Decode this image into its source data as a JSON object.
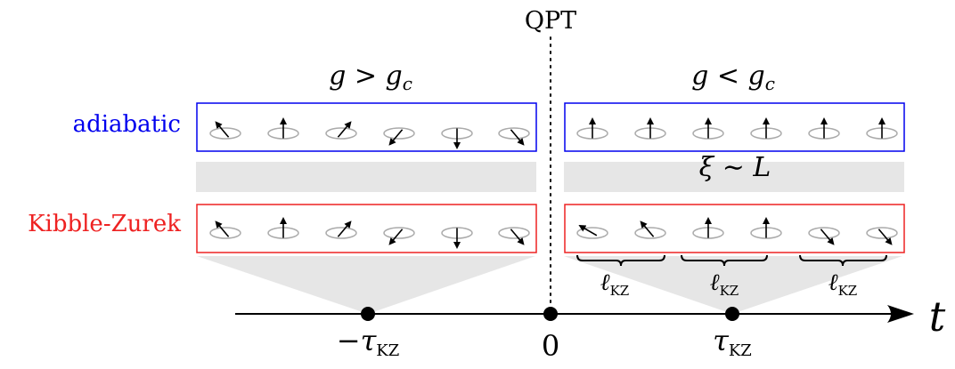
{
  "qpt_label": "QPT",
  "phase_left": {
    "g": "g",
    "rel": ">",
    "gc": "g",
    "sub": "c"
  },
  "phase_right": {
    "g": "g",
    "rel": "<",
    "gc": "g",
    "sub": "c"
  },
  "rows": {
    "adiabatic": {
      "label": "adiabatic",
      "color": "#0000ee"
    },
    "kz": {
      "label": "Kibble-Zurek",
      "color": "#ee2222"
    }
  },
  "xi_label": {
    "xi": "ξ",
    "rel": "∼",
    "L": "L"
  },
  "ell_label": {
    "ell": "ℓ",
    "sub": "KZ"
  },
  "time_axis": {
    "t": "t",
    "ticks": {
      "minus_tau": {
        "minus": "−",
        "tau": "τ",
        "sub": "KZ"
      },
      "zero": "0",
      "tau": {
        "tau": "τ",
        "sub": "KZ"
      }
    }
  },
  "spin_angles_deg": {
    "left": [
      -40,
      0,
      40,
      -140,
      180,
      140
    ],
    "adiabatic_right": [
      0,
      0,
      0,
      0,
      0,
      0
    ],
    "kz_right": [
      -60,
      -40,
      0,
      0,
      140,
      140
    ]
  },
  "colors": {
    "shade": "#e6e6e6",
    "ellipse": "#aaaaaa",
    "axis": "#000000"
  }
}
